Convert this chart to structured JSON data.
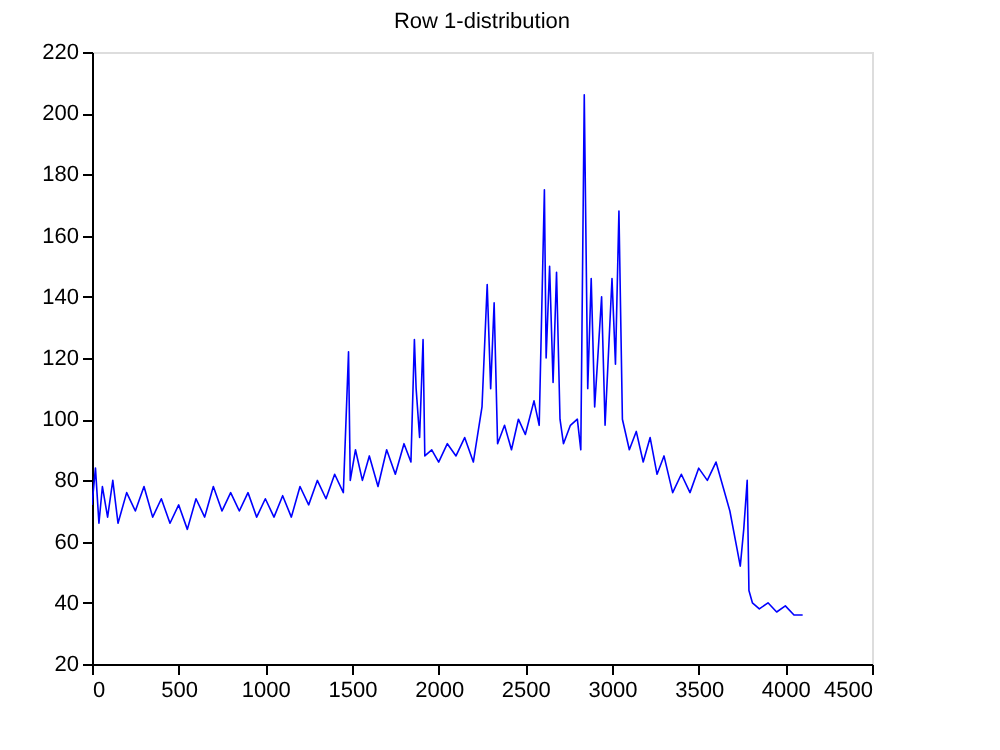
{
  "chart_data": {
    "type": "line",
    "title": "Row 1-distribution",
    "x": [
      0,
      20,
      40,
      60,
      90,
      120,
      150,
      200,
      250,
      300,
      350,
      400,
      450,
      500,
      550,
      600,
      650,
      700,
      750,
      800,
      850,
      900,
      950,
      1000,
      1050,
      1100,
      1150,
      1200,
      1250,
      1300,
      1350,
      1400,
      1450,
      1480,
      1490,
      1520,
      1560,
      1600,
      1650,
      1700,
      1750,
      1800,
      1840,
      1860,
      1870,
      1890,
      1910,
      1920,
      1960,
      2000,
      2050,
      2100,
      2150,
      2200,
      2250,
      2280,
      2300,
      2320,
      2340,
      2380,
      2420,
      2460,
      2500,
      2550,
      2580,
      2610,
      2620,
      2640,
      2660,
      2680,
      2700,
      2720,
      2760,
      2800,
      2820,
      2840,
      2860,
      2880,
      2900,
      2940,
      2960,
      3000,
      3020,
      3040,
      3060,
      3100,
      3140,
      3180,
      3220,
      3260,
      3300,
      3350,
      3400,
      3450,
      3500,
      3550,
      3600,
      3640,
      3680,
      3720,
      3740,
      3760,
      3780,
      3790,
      3810,
      3850,
      3900,
      3950,
      4000,
      4050,
      4100
    ],
    "series": [
      {
        "color": "#0000ff",
        "values": [
          72,
          84,
          66,
          78,
          68,
          80,
          66,
          76,
          70,
          78,
          68,
          74,
          66,
          72,
          64,
          74,
          68,
          78,
          70,
          76,
          70,
          76,
          68,
          74,
          68,
          75,
          68,
          78,
          72,
          80,
          74,
          82,
          76,
          122,
          80,
          90,
          80,
          88,
          78,
          90,
          82,
          92,
          86,
          126,
          110,
          94,
          126,
          88,
          90,
          86,
          92,
          88,
          94,
          86,
          104,
          144,
          110,
          138,
          92,
          98,
          90,
          100,
          95,
          106,
          98,
          175,
          120,
          150,
          112,
          148,
          100,
          92,
          98,
          100,
          90,
          206,
          110,
          146,
          104,
          140,
          98,
          146,
          118,
          168,
          100,
          90,
          96,
          86,
          94,
          82,
          88,
          76,
          82,
          76,
          84,
          80,
          86,
          78,
          70,
          58,
          52,
          64,
          80,
          44,
          40,
          38,
          40,
          37,
          39,
          36,
          36
        ]
      }
    ],
    "xlim": [
      0,
      4500
    ],
    "ylim": [
      20,
      220
    ],
    "xticks": [
      0,
      500,
      1000,
      1500,
      2000,
      2500,
      3000,
      3500,
      4000,
      4500
    ],
    "yticks": [
      20,
      40,
      60,
      80,
      100,
      120,
      140,
      160,
      180,
      200,
      220
    ],
    "grid": false,
    "line_style": "solid",
    "marker": "none"
  }
}
